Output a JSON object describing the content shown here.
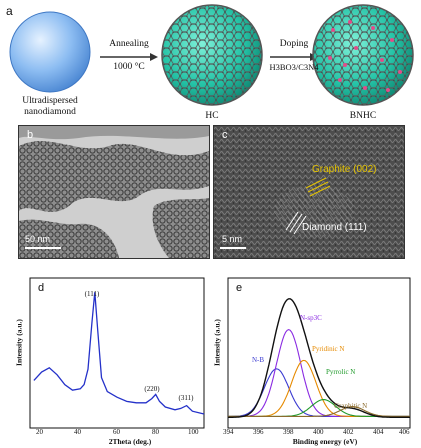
{
  "panel_a": {
    "label": "a",
    "sphere1_caption": [
      "Ultradispersed",
      "nanodiamond"
    ],
    "arrow1_top": "Annealing",
    "arrow1_bottom": "1000 °C",
    "sphere2_caption": "HC",
    "arrow2_top": "Doping",
    "arrow2_bottom": "H3BO3/C3N4",
    "sphere3_caption": "BNHC"
  },
  "panel_b": {
    "label": "b",
    "scale": "50 nm"
  },
  "panel_c": {
    "label": "c",
    "ann1": "Graphite (002)",
    "ann2": "Diamond (111)",
    "scale": "5 nm"
  },
  "panel_d": {
    "label": "d",
    "ylabel": "Intensity (a.u.)",
    "xlabel": "2Theta (deg.)",
    "peaks": [
      "(111)",
      "(220)",
      "(311)"
    ],
    "xticks": [
      "20",
      "40",
      "60",
      "80",
      "100"
    ]
  },
  "panel_e": {
    "label": "e",
    "ylabel": "Intensity (a.u.)",
    "xlabel": "Binding energy (eV)",
    "components": [
      "N-B",
      "N-sp3C",
      "Pyridinic N",
      "Pyrrolic N",
      "Graphitic N"
    ],
    "xticks": [
      "394",
      "396",
      "398",
      "400",
      "402",
      "404",
      "406"
    ]
  },
  "chart_data": [
    {
      "type": "line",
      "xlabel": "2Theta (deg.)",
      "ylabel": "Intensity (a.u.)",
      "xlim": [
        10,
        100
      ],
      "x": [
        12,
        16,
        20,
        24,
        28,
        32,
        36,
        38,
        40,
        42,
        43.5,
        45,
        47,
        50,
        55,
        60,
        65,
        70,
        73,
        75,
        77,
        80,
        85,
        88,
        91,
        94,
        100
      ],
      "y": [
        0.34,
        0.4,
        0.43,
        0.38,
        0.31,
        0.27,
        0.28,
        0.31,
        0.42,
        0.75,
        0.97,
        0.7,
        0.36,
        0.26,
        0.22,
        0.19,
        0.18,
        0.18,
        0.21,
        0.24,
        0.19,
        0.15,
        0.13,
        0.14,
        0.16,
        0.12,
        0.1
      ],
      "annotations": [
        "(111)",
        "(220)",
        "(311)"
      ]
    },
    {
      "type": "line",
      "xlabel": "Binding energy (eV)",
      "ylabel": "Intensity (a.u.)",
      "xlim": [
        394,
        406
      ],
      "series": [
        {
          "name": "N-B",
          "center": 397.2,
          "height": 0.34,
          "color": "#3b3bd1"
        },
        {
          "name": "N-sp3C",
          "center": 398.0,
          "height": 0.62,
          "color": "#8a2be2"
        },
        {
          "name": "Pyridinic N",
          "center": 399.0,
          "height": 0.4,
          "color": "#e68a00"
        },
        {
          "name": "Pyrrolic N",
          "center": 400.3,
          "height": 0.12,
          "color": "#1f9a2a"
        },
        {
          "name": "Graphitic N",
          "center": 402.2,
          "height": 0.07,
          "color": "#8b6b2d"
        }
      ],
      "envelope_peak": {
        "x": 398.1,
        "y": 0.88
      }
    }
  ]
}
